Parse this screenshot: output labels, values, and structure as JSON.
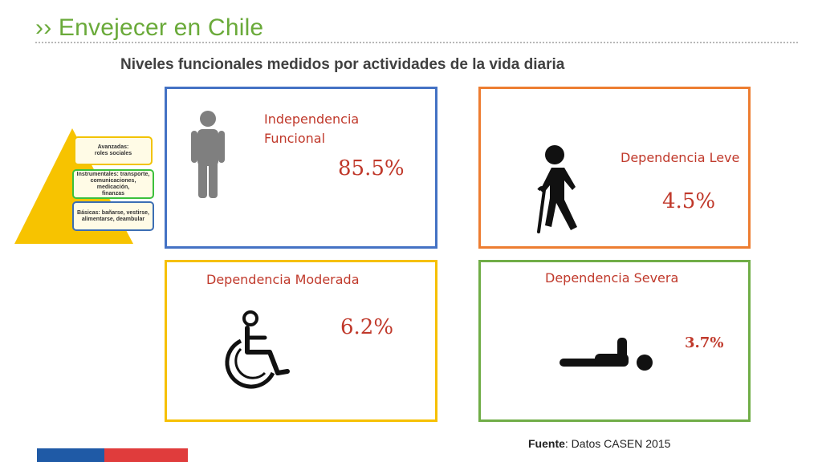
{
  "header": {
    "title": "›› Envejecer en Chile",
    "subtitle": "Niveles funcionales medidos por actividades de la vida diaria"
  },
  "pyramid": {
    "levels": [
      {
        "line1": "Avanzadas:",
        "line2": "roles sociales",
        "line3": ""
      },
      {
        "line1": "Instrumentales: transporte,",
        "line2": "comunicaciones, medicación,",
        "line3": "finanzas"
      },
      {
        "line1": "Básicas: bañarse, vestirse,",
        "line2": "alimentarse, deambular",
        "line3": ""
      }
    ]
  },
  "cards": {
    "independencia": {
      "label_line1": "Independencia",
      "label_line2": "Funcional",
      "value": "85.5%",
      "icon": "standing-person-icon",
      "color": "#4472c4"
    },
    "leve": {
      "label": "Dependencia Leve",
      "value": "4.5%",
      "icon": "person-with-cane-icon",
      "color": "#ed7d31"
    },
    "moderada": {
      "label": "Dependencia Moderada",
      "value": "6.2%",
      "icon": "wheelchair-icon",
      "color": "#f6c000"
    },
    "severa": {
      "label": "Dependencia Severa",
      "value": "3.7%",
      "icon": "lying-person-icon",
      "color": "#70ad47"
    }
  },
  "footer": {
    "source_label": "Fuente",
    "source_text": ": Datos CASEN 2015"
  },
  "colors": {
    "title_green": "#6aaa3a",
    "value_red": "#c0392b",
    "brand_blue": "#1f5aa6",
    "brand_red": "#e03c3c"
  }
}
